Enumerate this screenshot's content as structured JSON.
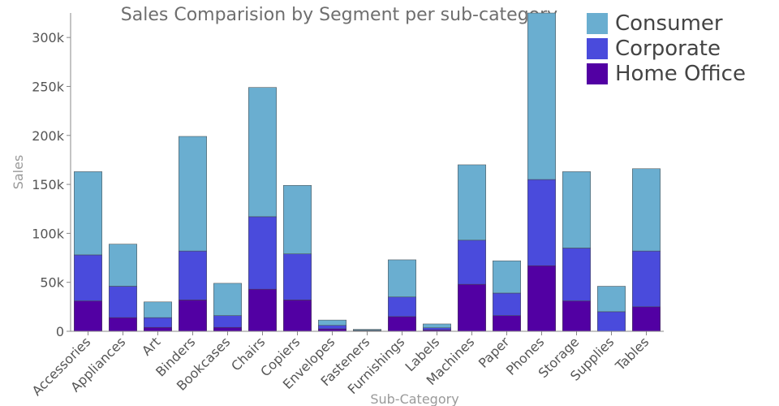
{
  "chart_data": {
    "type": "bar",
    "stacked": true,
    "title": "Sales Comparision by Segment per sub-category",
    "xlabel": "Sub-Category",
    "ylabel": "Sales",
    "ylim": [
      0,
      325000
    ],
    "yticks": [
      0,
      50000,
      100000,
      150000,
      200000,
      250000,
      300000
    ],
    "ytick_labels": [
      "0",
      "50k",
      "100k",
      "150k",
      "200k",
      "250k",
      "300k"
    ],
    "grid": false,
    "legend_position": "top-right",
    "categories": [
      "Accessories",
      "Appliances",
      "Art",
      "Binders",
      "Bookcases",
      "Chairs",
      "Copiers",
      "Envelopes",
      "Fasteners",
      "Furnishings",
      "Labels",
      "Machines",
      "Paper",
      "Phones",
      "Storage",
      "Supplies",
      "Tables"
    ],
    "series": [
      {
        "name": "Home Office",
        "color": "#5200a3",
        "values": [
          31000,
          14000,
          4000,
          32000,
          4000,
          43000,
          32000,
          2500,
          500,
          15000,
          1500,
          48000,
          16000,
          67000,
          31000,
          0,
          25000
        ]
      },
      {
        "name": "Corporate",
        "color": "#4a4bdc",
        "values": [
          47000,
          32000,
          10000,
          50000,
          12000,
          74000,
          47000,
          3500,
          500,
          20000,
          2000,
          45000,
          23000,
          88000,
          54000,
          20000,
          57000
        ]
      },
      {
        "name": "Consumer",
        "color": "#6aaed0",
        "values": [
          85000,
          43000,
          16000,
          117000,
          33000,
          132000,
          70000,
          5500,
          1000,
          38000,
          4000,
          77000,
          33000,
          170000,
          78000,
          26000,
          84000
        ]
      }
    ],
    "legend_order": [
      "Consumer",
      "Corporate",
      "Home Office"
    ]
  }
}
